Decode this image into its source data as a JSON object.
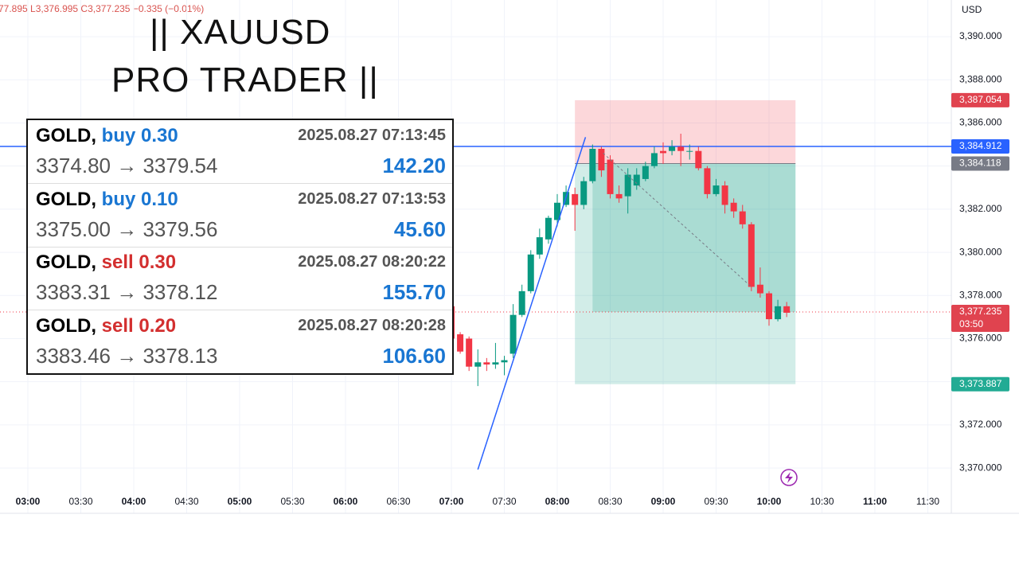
{
  "header": "77.895 L3,376.995 C3,377.235 −0.335 (−0.01%)",
  "overlay_title": [
    "|| XAUUSD",
    "PRO TRADER ||"
  ],
  "trades": {
    "arrow": "→",
    "rows": [
      {
        "symbol": "GOLD,",
        "side": "buy",
        "volume": "0.30",
        "time": "2025.08.27 07:13:45",
        "open": "3374.80",
        "close": "3379.54",
        "profit": "142.20"
      },
      {
        "symbol": "GOLD,",
        "side": "buy",
        "volume": "0.10",
        "time": "2025.08.27 07:13:53",
        "open": "3375.00",
        "close": "3379.56",
        "profit": "45.60"
      },
      {
        "symbol": "GOLD,",
        "side": "sell",
        "volume": "0.30",
        "time": "2025.08.27 08:20:22",
        "open": "3383.31",
        "close": "3378.12",
        "profit": "155.70"
      },
      {
        "symbol": "GOLD,",
        "side": "sell",
        "volume": "0.20",
        "time": "2025.08.27 08:20:28",
        "open": "3383.46",
        "close": "3378.13",
        "profit": "106.60"
      }
    ]
  },
  "chart_data": {
    "type": "candlestick",
    "currency": "USD",
    "x": [
      "07:00",
      "07:05",
      "07:10",
      "07:15",
      "07:20",
      "07:25",
      "07:30",
      "07:35",
      "07:40",
      "07:45",
      "07:50",
      "07:55",
      "08:00",
      "08:05",
      "08:10",
      "08:15",
      "08:20",
      "08:25",
      "08:30",
      "08:35",
      "08:40",
      "08:45",
      "08:50",
      "08:55",
      "09:00",
      "09:05",
      "09:10",
      "09:15",
      "09:20",
      "09:25",
      "09:30",
      "09:35",
      "09:40",
      "09:45",
      "09:50",
      "09:55",
      "10:00",
      "10:05",
      "10:10"
    ],
    "open": [
      3377.5,
      3376.2,
      3376.0,
      3374.7,
      3374.9,
      3374.8,
      3374.9,
      3375.3,
      3377.1,
      3378.2,
      3379.9,
      3380.6,
      3381.5,
      3382.2,
      3382.7,
      3382.2,
      3383.3,
      3384.8,
      3384.3,
      3382.7,
      3382.6,
      3383.1,
      3383.4,
      3384.0,
      3384.7,
      3384.7,
      3384.9,
      3384.7,
      3384.7,
      3383.9,
      3382.7,
      3383.1,
      3382.3,
      3381.9,
      3381.3,
      3378.5,
      3378.1,
      3376.9,
      3377.5
    ],
    "high": [
      3378.0,
      3376.3,
      3376.1,
      3375.5,
      3375.1,
      3375.8,
      3375.2,
      3377.6,
      3378.5,
      3380.1,
      3381.1,
      3381.7,
      3382.7,
      3383.1,
      3383.0,
      3383.5,
      3385.0,
      3384.9,
      3384.5,
      3383.1,
      3383.9,
      3383.9,
      3384.2,
      3384.9,
      3385.1,
      3385.2,
      3385.5,
      3385.0,
      3384.9,
      3384.0,
      3383.4,
      3383.3,
      3382.5,
      3382.2,
      3381.4,
      3379.3,
      3378.2,
      3377.8,
      3377.7
    ],
    "low": [
      3375.8,
      3375.3,
      3374.5,
      3373.8,
      3374.5,
      3374.6,
      3374.3,
      3375.1,
      3377.0,
      3378.1,
      3379.7,
      3380.4,
      3381.2,
      3382.1,
      3381.0,
      3382.0,
      3383.2,
      3383.5,
      3382.5,
      3382.3,
      3381.8,
      3382.9,
      3383.3,
      3383.9,
      3384.1,
      3384.5,
      3384.0,
      3384.3,
      3383.8,
      3382.5,
      3382.6,
      3381.8,
      3381.6,
      3381.1,
      3378.2,
      3377.9,
      3376.6,
      3376.8,
      3377.0
    ],
    "close": [
      3376.0,
      3375.4,
      3374.7,
      3374.9,
      3374.8,
      3374.9,
      3375.0,
      3377.1,
      3378.2,
      3379.9,
      3380.7,
      3381.6,
      3382.3,
      3382.8,
      3382.2,
      3383.3,
      3384.8,
      3383.8,
      3382.7,
      3382.5,
      3383.6,
      3383.6,
      3384.0,
      3384.6,
      3384.6,
      3384.9,
      3384.7,
      3384.7,
      3383.9,
      3382.7,
      3383.1,
      3382.2,
      3381.9,
      3381.3,
      3378.4,
      3378.1,
      3376.9,
      3377.5,
      3377.2
    ],
    "up_color": "#089981",
    "down_color": "#f23645",
    "ylim": [
      3367.9,
      3391.7
    ],
    "yticks": [
      {
        "value": 3370,
        "label": "3,370.000"
      },
      {
        "value": 3372,
        "label": "3,372.000"
      },
      {
        "value": 3374,
        "label": "3,374.000"
      },
      {
        "value": 3376,
        "label": "3,376.000"
      },
      {
        "value": 3378,
        "label": "3,378.000"
      },
      {
        "value": 3380,
        "label": "3,380.000"
      },
      {
        "value": 3382,
        "label": "3,382.000"
      },
      {
        "value": 3384,
        "label": "3,384.000"
      },
      {
        "value": 3386,
        "label": "3,386.000"
      },
      {
        "value": 3388,
        "label": "3,388.000"
      },
      {
        "value": 3390,
        "label": "3,390.000"
      }
    ],
    "xticks": [
      "03:00",
      "03:30",
      "04:00",
      "04:30",
      "05:00",
      "05:30",
      "06:00",
      "06:30",
      "07:00",
      "07:30",
      "08:00",
      "08:30",
      "09:00",
      "09:30",
      "10:00",
      "10:30",
      "11:00",
      "11:30"
    ],
    "grid": true,
    "lines": [
      {
        "value": 3384.912,
        "color": "#2962ff",
        "style": "solid"
      },
      {
        "value": 3377.235,
        "color": "#f23645",
        "style": "dotted"
      }
    ],
    "price_tags": [
      {
        "value": 3387.054,
        "label": "3,387.054",
        "color": "#e0434f"
      },
      {
        "value": 3384.912,
        "label": "3,384.912",
        "color": "#2962ff"
      },
      {
        "value": 3384.118,
        "label": "3,384.118",
        "color": "#787b86"
      },
      {
        "value": 3377.235,
        "label": "3,377.235",
        "sublabel": "03:50",
        "color": "#e0434f"
      },
      {
        "value": 3373.887,
        "label": "3,373.887",
        "color": "#22ab94"
      }
    ],
    "position": {
      "x": [
        "08:10",
        "10:15"
      ],
      "stop": 3387.054,
      "entry": 3384.118,
      "target": 3373.887,
      "realized": {
        "x": [
          "08:20",
          "10:15"
        ],
        "from": 3384.118,
        "to": 3377.235
      }
    },
    "trend_line": {
      "x": [
        "07:15",
        "08:16"
      ],
      "y": [
        3369.93,
        3385.34
      ],
      "color": "#2962ff"
    },
    "path_line": {
      "x": [
        "08:26",
        "09:50"
      ],
      "y": [
        3384.6,
        3378.4
      ]
    }
  }
}
